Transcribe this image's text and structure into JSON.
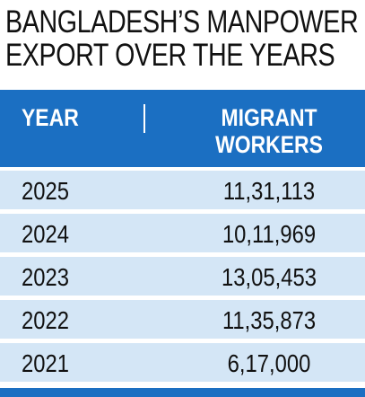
{
  "header": {
    "title_lines": [
      "BANGLADESH’S MANPOWER",
      "EXPORT OVER THE YEARS"
    ]
  },
  "table": {
    "columns": [
      "YEAR",
      "MIGRANT WORKERS"
    ],
    "rows": [
      [
        "2025",
        "11,31,113"
      ],
      [
        "2024",
        "10,11,969"
      ],
      [
        "2023",
        "13,05,453"
      ],
      [
        "2022",
        "11,35,873"
      ],
      [
        "2021",
        "6,17,000"
      ]
    ]
  }
}
